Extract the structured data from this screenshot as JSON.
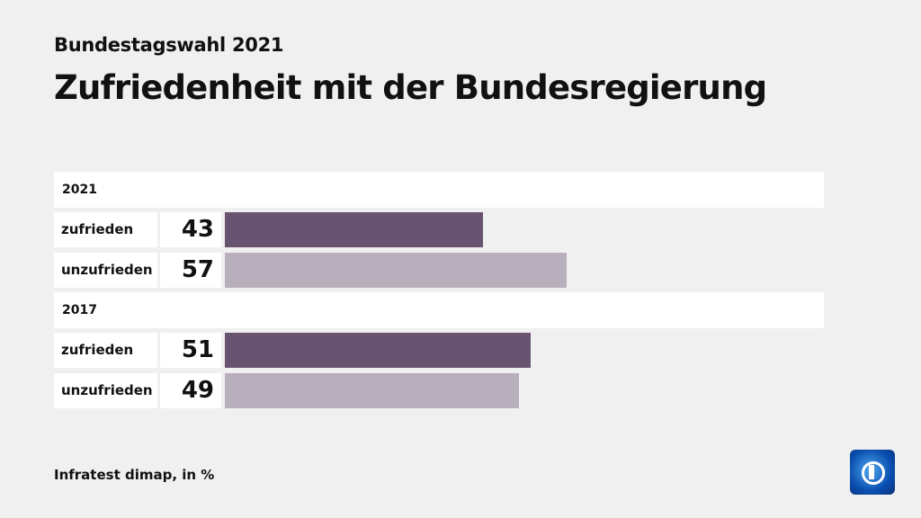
{
  "header": {
    "subtitle": "Bundestagswahl 2021",
    "title": "Zufriedenheit mit der Bundesregierung"
  },
  "source": "Infratest dimap, in %",
  "logo": {
    "icon": "ard-das-erste-logo"
  },
  "colors": {
    "zufrieden": "#685470",
    "unzufrieden": "#b8afbd",
    "background": "#f0f0f0"
  },
  "chart_data": {
    "type": "bar",
    "orientation": "horizontal",
    "title": "Zufriedenheit mit der Bundesregierung",
    "unit": "%",
    "xlim": [
      0,
      100
    ],
    "grid": false,
    "groups": [
      {
        "label": "2021",
        "rows": [
          {
            "label": "zufrieden",
            "value": 43
          },
          {
            "label": "unzufrieden",
            "value": 57
          }
        ]
      },
      {
        "label": "2017",
        "rows": [
          {
            "label": "zufrieden",
            "value": 51
          },
          {
            "label": "unzufrieden",
            "value": 49
          }
        ]
      }
    ]
  }
}
